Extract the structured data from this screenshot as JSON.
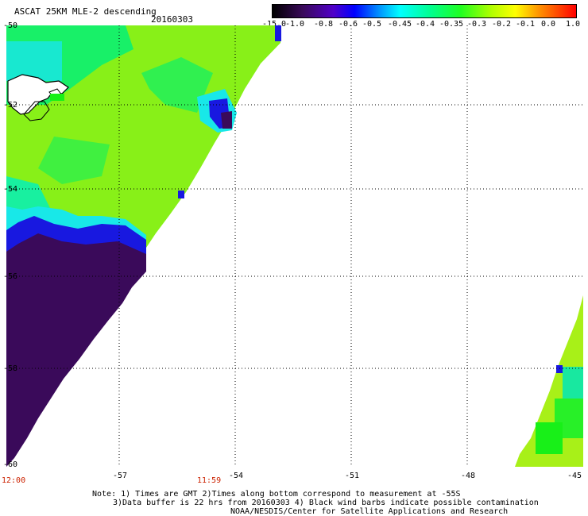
{
  "header": {
    "title": "ASCAT 25KM MLE-2 descending",
    "date": "20160303"
  },
  "colorbar": {
    "labels": [
      "-15.0",
      "-1.0",
      "-0.8",
      "-0.6",
      "-0.5",
      "-0.45",
      "-0.4",
      "-0.35",
      "-0.3",
      "-0.2",
      "-0.1",
      "0.0",
      "1.0"
    ]
  },
  "axes": {
    "lon_labels": [
      "-57",
      "-54",
      "-51",
      "-48",
      "-45"
    ],
    "lat_labels": [
      "-50",
      "-52",
      "-54",
      "-56",
      "-58",
      "-60"
    ],
    "time_labels": [
      "12:00",
      "11:59"
    ]
  },
  "notes": {
    "line1": "Note: 1) Times are GMT 2)Times along bottom correspond to measurement at -55S",
    "line2": "3)Data buffer is 22 hrs from 20160303 4) Black wind barbs indicate possible contamination",
    "line3": "NOAA/NESDIS/Center for Satellite Applications and Research"
  },
  "colors": {
    "deep": "#3a0a5a",
    "blue": "#1818e0",
    "cyan": "#18e8e8",
    "green": "#18f018",
    "lime": "#8cf018",
    "yellowgreen": "#b0f018"
  }
}
